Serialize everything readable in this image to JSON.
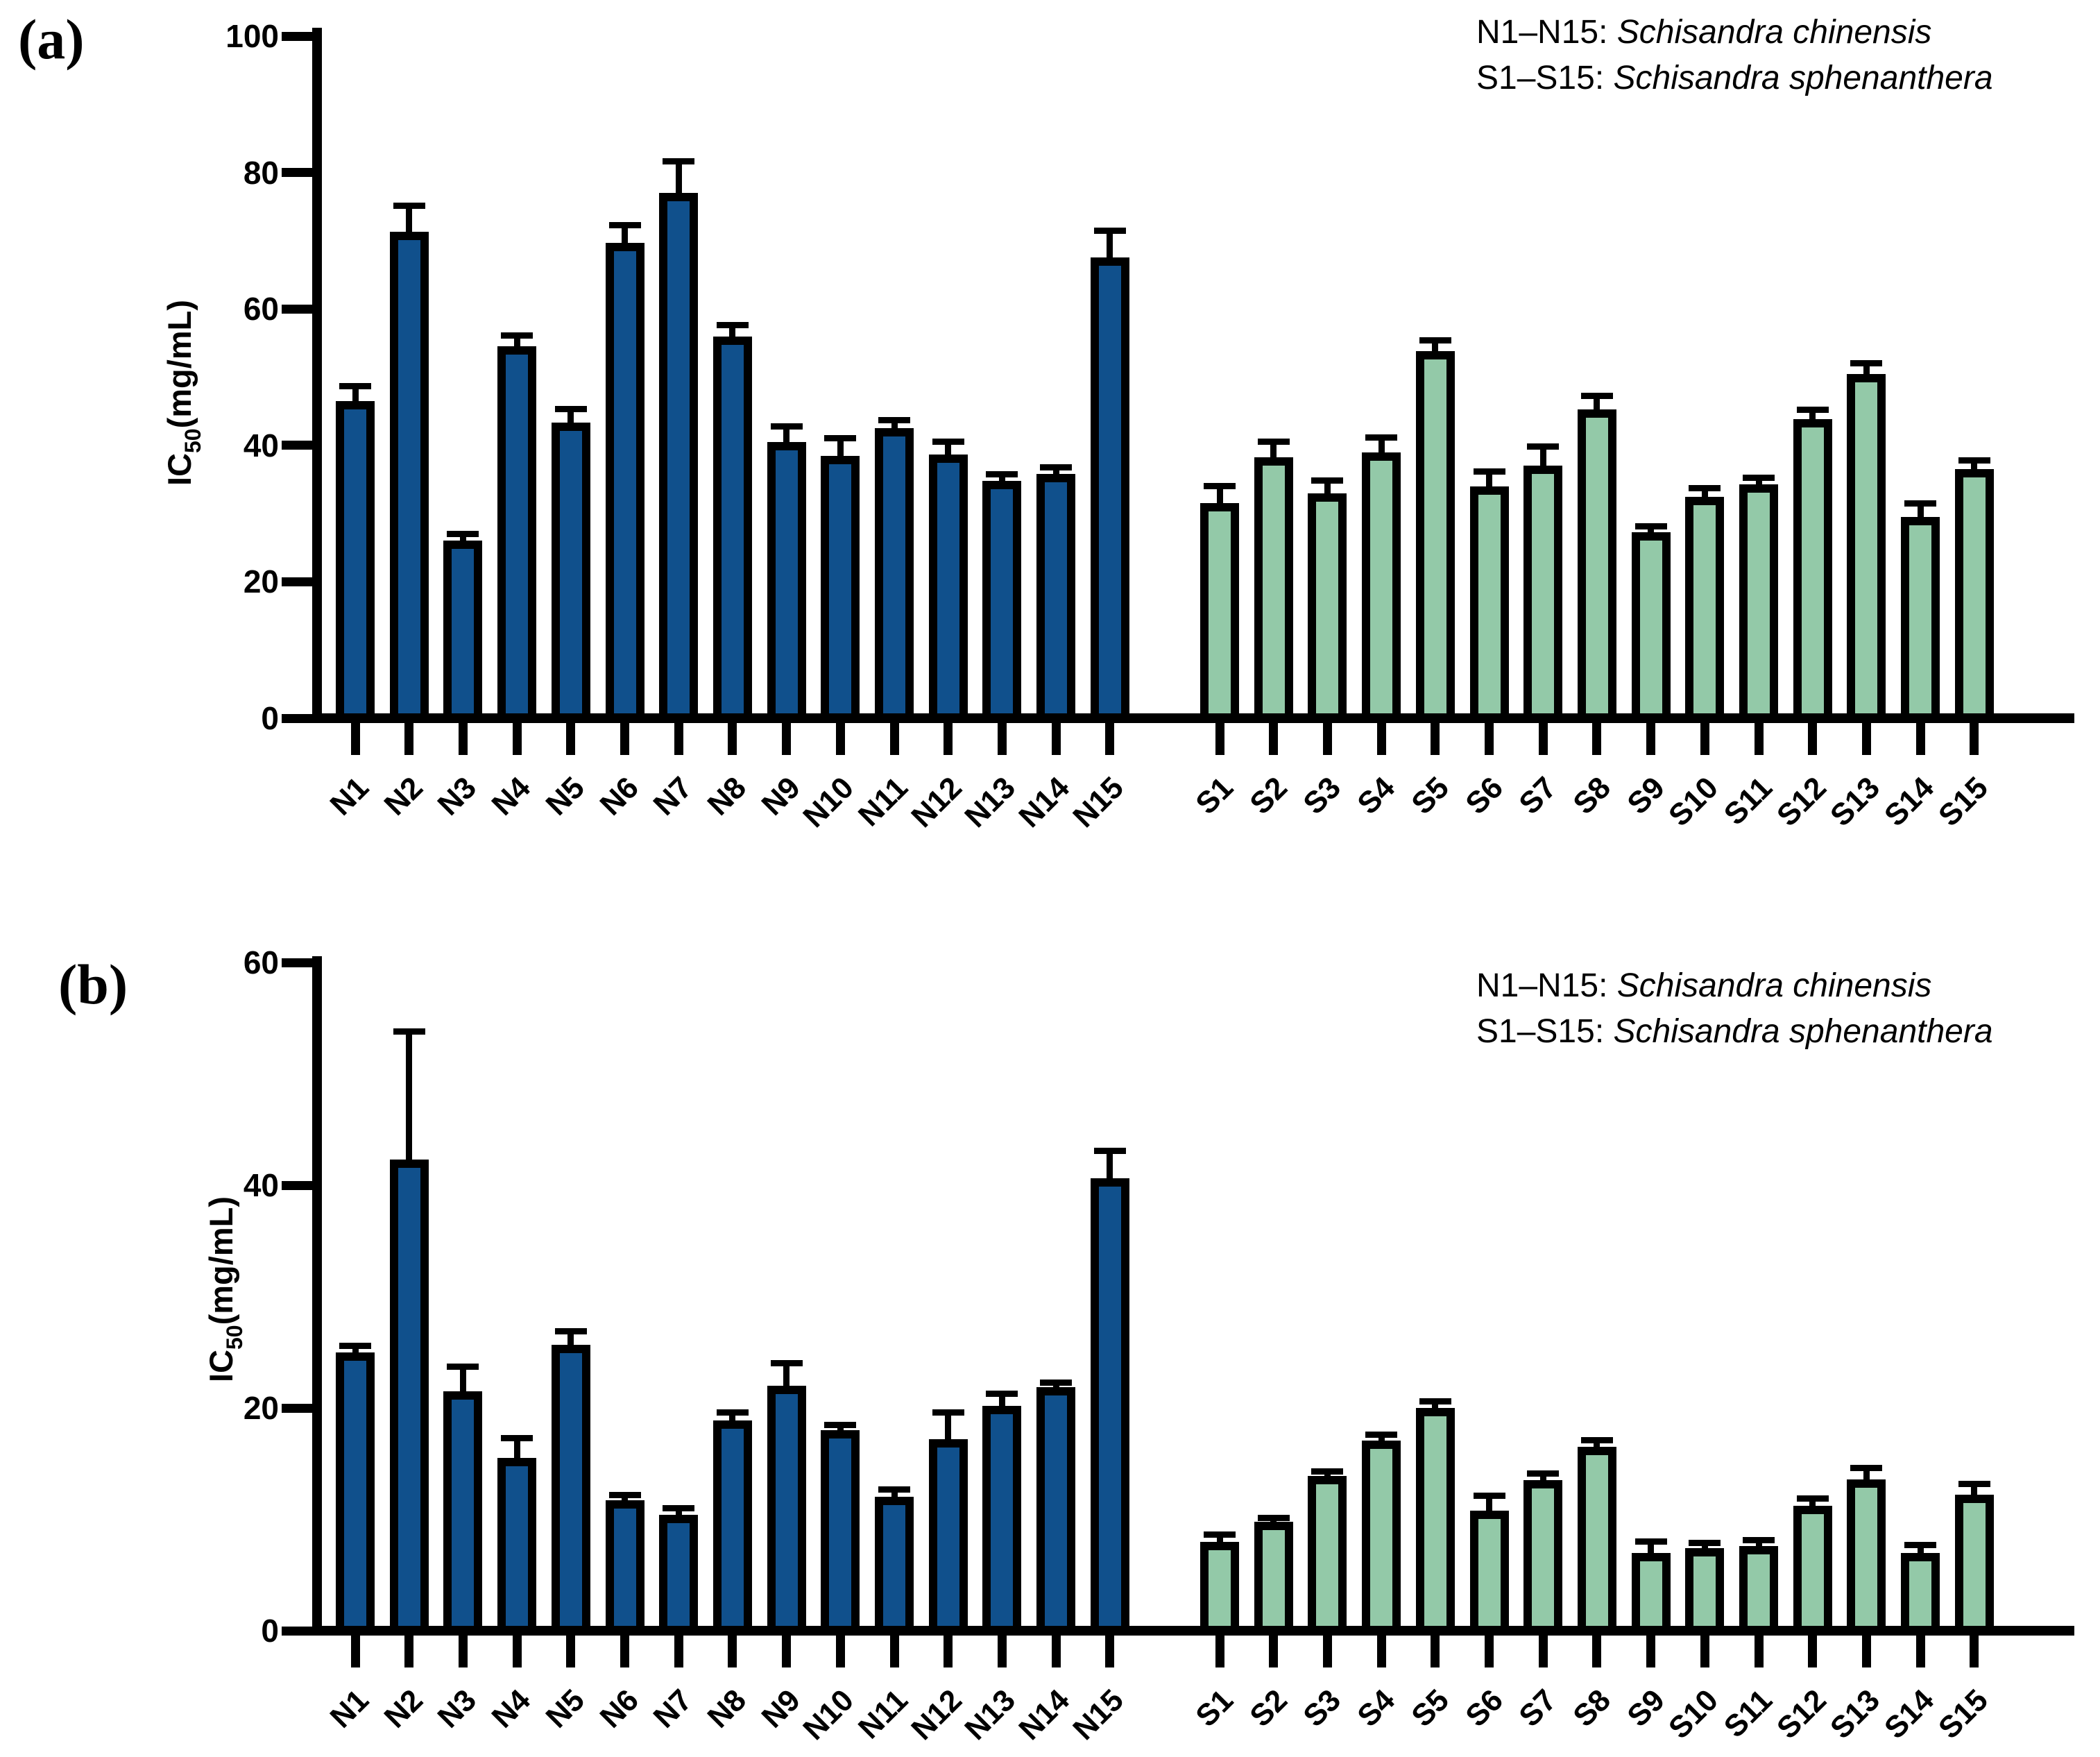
{
  "panels": [
    {
      "label": "(a)",
      "y_title": {
        "pre": "IC",
        "sub": "50",
        "post": "(mg/mL)"
      },
      "legend": [
        {
          "prefix": "N1–N15: ",
          "species": "Schisandra chinensis"
        },
        {
          "prefix": "S1–S15: ",
          "species": "Schisandra sphenanthera"
        }
      ]
    },
    {
      "label": "(b)",
      "y_title": {
        "pre": "IC",
        "sub": "50",
        "post": "(mg/mL)"
      },
      "legend": [
        {
          "prefix": "N1–N15: ",
          "species": "Schisandra chinensis"
        },
        {
          "prefix": "S1–S15: ",
          "species": "Schisandra sphenanthera"
        }
      ]
    }
  ],
  "chart_data": [
    {
      "type": "bar",
      "panel": "a",
      "title": "",
      "xlabel": "",
      "ylabel": "IC50(mg/mL)",
      "ylim": [
        0,
        100
      ],
      "yticks": [
        0,
        20,
        40,
        60,
        80,
        100
      ],
      "grid": false,
      "error_bars": "upper",
      "legend_position": "top-right",
      "groups": [
        {
          "name": "Schisandra chinensis",
          "label_range": "N1–N15",
          "color": "#10508C",
          "categories": [
            "N1",
            "N2",
            "N3",
            "N4",
            "N5",
            "N6",
            "N7",
            "N8",
            "N9",
            "N10",
            "N11",
            "N12",
            "N13",
            "N14",
            "N15"
          ],
          "values": [
            46.5,
            71.3,
            26.0,
            54.5,
            43.3,
            69.7,
            77.0,
            56.0,
            40.5,
            38.5,
            42.5,
            38.7,
            34.8,
            35.8,
            67.5
          ],
          "errors": [
            2.2,
            3.8,
            1.0,
            1.6,
            2.0,
            2.6,
            4.6,
            1.6,
            2.3,
            2.5,
            1.2,
            1.8,
            1.0,
            1.0,
            4.0
          ]
        },
        {
          "name": "Schisandra sphenanthera",
          "label_range": "S1–S15",
          "color": "#93C9A8",
          "categories": [
            "S1",
            "S2",
            "S3",
            "S4",
            "S5",
            "S6",
            "S7",
            "S8",
            "S9",
            "S10",
            "S11",
            "S12",
            "S13",
            "S14",
            "S15"
          ],
          "values": [
            31.5,
            38.2,
            33.0,
            39.0,
            53.8,
            34.0,
            37.0,
            45.3,
            27.3,
            32.5,
            34.3,
            43.8,
            50.5,
            29.5,
            36.5
          ],
          "errors": [
            2.5,
            2.3,
            1.8,
            2.2,
            1.6,
            2.2,
            2.8,
            2.0,
            0.8,
            1.2,
            1.0,
            1.4,
            1.5,
            2.0,
            1.3
          ]
        }
      ]
    },
    {
      "type": "bar",
      "panel": "b",
      "title": "",
      "xlabel": "",
      "ylabel": "IC50(mg/mL)",
      "ylim": [
        0,
        60
      ],
      "yticks": [
        0,
        20,
        40,
        60
      ],
      "grid": false,
      "error_bars": "upper",
      "legend_position": "top-right",
      "groups": [
        {
          "name": "Schisandra chinensis",
          "label_range": "N1–N15",
          "color": "#10508C",
          "categories": [
            "N1",
            "N2",
            "N3",
            "N4",
            "N5",
            "N6",
            "N7",
            "N8",
            "N9",
            "N10",
            "N11",
            "N12",
            "N13",
            "N14",
            "N15"
          ],
          "values": [
            25.0,
            42.3,
            21.5,
            15.5,
            25.7,
            11.7,
            10.4,
            18.9,
            22.0,
            18.0,
            12.0,
            17.2,
            20.2,
            21.9,
            40.6
          ],
          "errors": [
            0.6,
            11.5,
            2.2,
            1.8,
            1.2,
            0.5,
            0.6,
            0.7,
            2.0,
            0.5,
            0.7,
            2.4,
            1.1,
            0.4,
            2.5
          ]
        },
        {
          "name": "Schisandra sphenanthera",
          "label_range": "S1–S15",
          "color": "#93C9A8",
          "categories": [
            "S1",
            "S2",
            "S3",
            "S4",
            "S5",
            "S6",
            "S7",
            "S8",
            "S9",
            "S10",
            "S11",
            "S12",
            "S13",
            "S14",
            "S15"
          ],
          "values": [
            8.0,
            9.8,
            13.9,
            17.1,
            20.0,
            10.8,
            13.5,
            16.5,
            7.0,
            7.4,
            7.6,
            11.2,
            13.6,
            7.0,
            12.2
          ],
          "errors": [
            0.6,
            0.3,
            0.4,
            0.5,
            0.6,
            1.3,
            0.6,
            0.6,
            1.0,
            0.5,
            0.5,
            0.7,
            1.0,
            0.7,
            1.0
          ]
        }
      ]
    }
  ]
}
